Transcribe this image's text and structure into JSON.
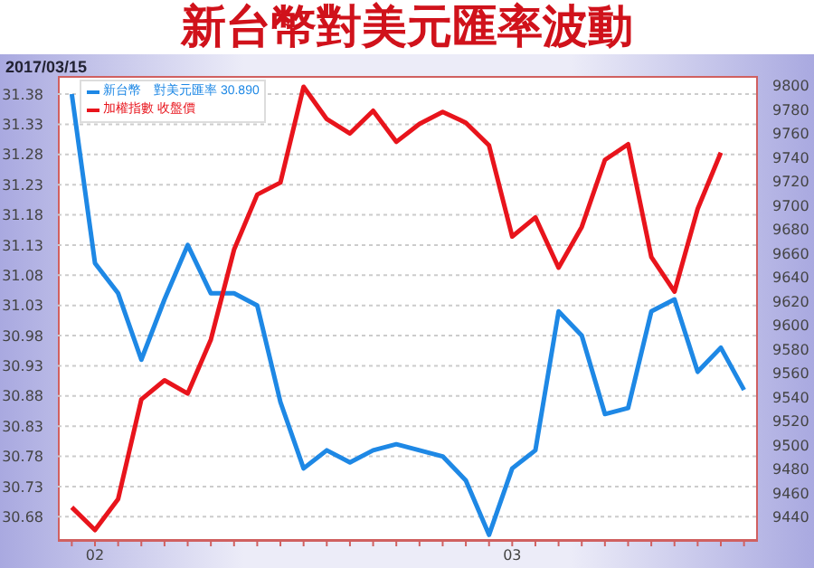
{
  "chart_data": {
    "type": "line",
    "title": "新台幣對美元匯率波動",
    "subtitle": "2017/03/15",
    "categories": [
      null,
      "02",
      null,
      null,
      null,
      null,
      null,
      null,
      null,
      null,
      null,
      null,
      null,
      null,
      null,
      null,
      null,
      null,
      null,
      "03",
      null,
      null,
      null,
      null,
      null,
      null,
      null,
      null,
      null,
      null
    ],
    "series": [
      {
        "name": "新台幣　對美元匯率 30.890",
        "color": "#1e88e5",
        "values": [
          31.38,
          31.1,
          31.05,
          30.94,
          31.04,
          31.13,
          31.05,
          31.05,
          31.03,
          30.87,
          30.76,
          30.79,
          30.77,
          30.79,
          30.8,
          30.79,
          30.78,
          30.74,
          30.65,
          30.76,
          30.79,
          31.02,
          30.98,
          30.85,
          30.86,
          31.02,
          31.04,
          30.92,
          30.96,
          30.89
        ]
      },
      {
        "name": "加權指數 收盤價",
        "color": "#e8141c",
        "axis": "y2",
        "values": [
          9448,
          9429,
          9455,
          9538,
          9554,
          9543,
          9588,
          9663,
          9709,
          9719,
          9799,
          9772,
          9760,
          9779,
          9753,
          9768,
          9778,
          9769,
          9750,
          9674,
          9690,
          9648,
          9682,
          9738,
          9751,
          9657,
          9628,
          9697,
          9744,
          null
        ]
      }
    ],
    "ylim": [
      30.64,
      31.41
    ],
    "yticks": [
      30.68,
      30.73,
      30.78,
      30.83,
      30.88,
      30.93,
      30.98,
      31.03,
      31.08,
      31.13,
      31.18,
      31.23,
      31.28,
      31.33,
      31.38
    ],
    "y2lim": [
      9420,
      9808
    ],
    "y2ticks": [
      9440,
      9460,
      9480,
      9500,
      9520,
      9540,
      9560,
      9580,
      9600,
      9620,
      9640,
      9660,
      9680,
      9700,
      9720,
      9740,
      9760,
      9780,
      9800
    ],
    "grid": "y",
    "legend": "top left",
    "marker": "none",
    "line_style": "solid"
  }
}
